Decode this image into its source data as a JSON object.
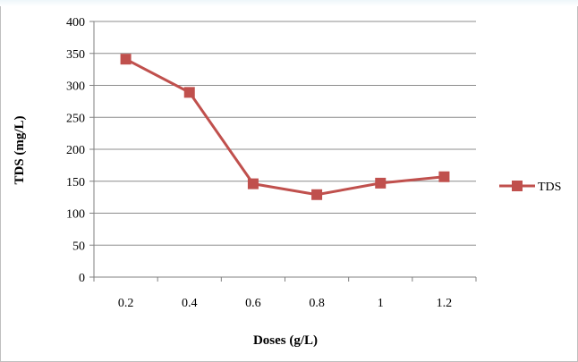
{
  "chart_data": {
    "type": "line",
    "x": [
      "0.2",
      "0.4",
      "0.6",
      "0.8",
      "1",
      "1.2"
    ],
    "series": [
      {
        "name": "TDS",
        "values": [
          341,
          289,
          146,
          129,
          147,
          157
        ],
        "color": "#c0504d",
        "marker": "square"
      }
    ],
    "xlabel": "Doses (g/L)",
    "ylabel": "TDS (mg/L)",
    "ylim": [
      0,
      400
    ],
    "yticks": [
      "0",
      "50",
      "100",
      "150",
      "200",
      "250",
      "300",
      "350",
      "400"
    ],
    "grid": "horizontal",
    "legend_position": "right"
  }
}
